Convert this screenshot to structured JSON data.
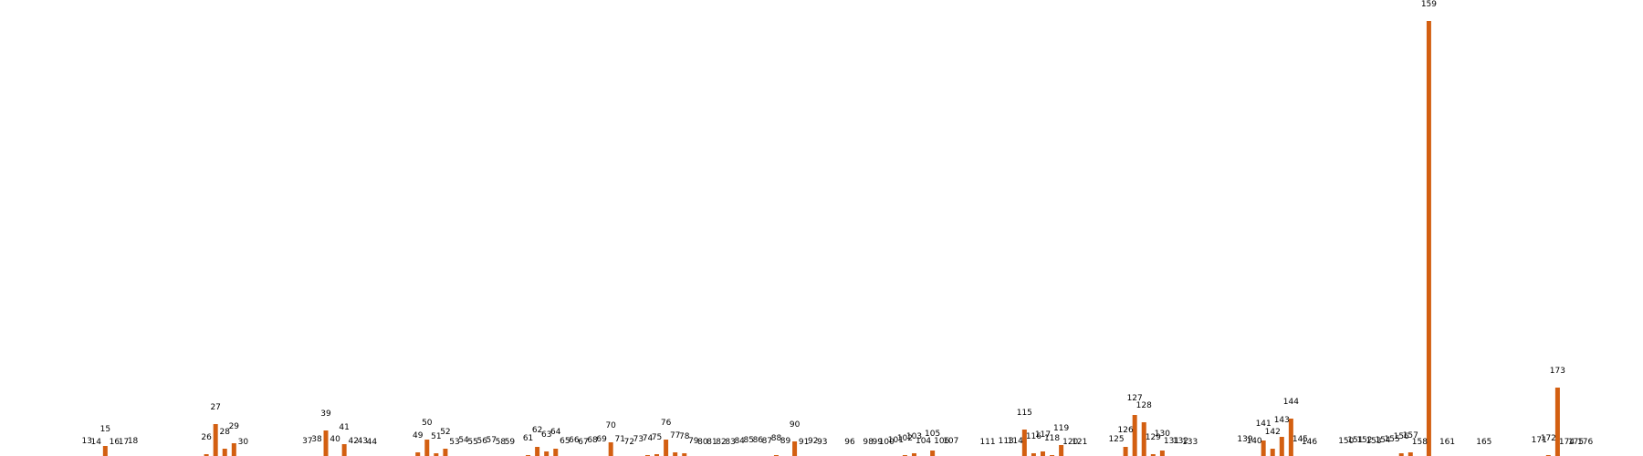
{
  "chart_data": {
    "type": "bar",
    "bar_color": "#d35f11",
    "background": "#ffffff",
    "grid": false,
    "axes_visible": false,
    "points": [
      {
        "label": "13",
        "value": 1
      },
      {
        "label": "14",
        "value": 0
      },
      {
        "label": "15",
        "value": 14
      },
      {
        "label": "16",
        "value": 0
      },
      {
        "label": "17",
        "value": 0
      },
      {
        "label": "18",
        "value": 1
      },
      {
        "label": "26",
        "value": 5
      },
      {
        "label": "27",
        "value": 38
      },
      {
        "label": "28",
        "value": 11
      },
      {
        "label": "29",
        "value": 17
      },
      {
        "label": "30",
        "value": 0
      },
      {
        "label": "37",
        "value": 1
      },
      {
        "label": "38",
        "value": 3
      },
      {
        "label": "39",
        "value": 31
      },
      {
        "label": "40",
        "value": 3
      },
      {
        "label": "41",
        "value": 16
      },
      {
        "label": "42",
        "value": 1
      },
      {
        "label": "43",
        "value": 1
      },
      {
        "label": "44",
        "value": 0
      },
      {
        "label": "49",
        "value": 7
      },
      {
        "label": "50",
        "value": 21
      },
      {
        "label": "51",
        "value": 6
      },
      {
        "label": "52",
        "value": 11
      },
      {
        "label": "53",
        "value": 0
      },
      {
        "label": "54",
        "value": 2
      },
      {
        "label": "55",
        "value": 0
      },
      {
        "label": "56",
        "value": 1
      },
      {
        "label": "57",
        "value": 2
      },
      {
        "label": "58",
        "value": 0
      },
      {
        "label": "59",
        "value": 0
      },
      {
        "label": "61",
        "value": 4
      },
      {
        "label": "62",
        "value": 13
      },
      {
        "label": "63",
        "value": 8
      },
      {
        "label": "64",
        "value": 11
      },
      {
        "label": "65",
        "value": 1
      },
      {
        "label": "66",
        "value": 2
      },
      {
        "label": "67",
        "value": 0
      },
      {
        "label": "68",
        "value": 2
      },
      {
        "label": "69",
        "value": 3
      },
      {
        "label": "70",
        "value": 18
      },
      {
        "label": "71",
        "value": 3
      },
      {
        "label": "72",
        "value": 0
      },
      {
        "label": "73",
        "value": 3
      },
      {
        "label": "74",
        "value": 4
      },
      {
        "label": "75",
        "value": 5
      },
      {
        "label": "76",
        "value": 21
      },
      {
        "label": "77",
        "value": 7
      },
      {
        "label": "78",
        "value": 6
      },
      {
        "label": "79",
        "value": 1
      },
      {
        "label": "80",
        "value": 0
      },
      {
        "label": "81",
        "value": 0
      },
      {
        "label": "82",
        "value": 0
      },
      {
        "label": "83",
        "value": 0
      },
      {
        "label": "84",
        "value": 1
      },
      {
        "label": "85",
        "value": 2
      },
      {
        "label": "86",
        "value": 2
      },
      {
        "label": "87",
        "value": 1
      },
      {
        "label": "88",
        "value": 4
      },
      {
        "label": "89",
        "value": 1
      },
      {
        "label": "90",
        "value": 19
      },
      {
        "label": "91",
        "value": 0
      },
      {
        "label": "92",
        "value": 1
      },
      {
        "label": "93",
        "value": 0
      },
      {
        "label": "96",
        "value": 0
      },
      {
        "label": "98",
        "value": 0
      },
      {
        "label": "99",
        "value": 0
      },
      {
        "label": "100",
        "value": 0
      },
      {
        "label": "101",
        "value": 2
      },
      {
        "label": "102",
        "value": 4
      },
      {
        "label": "103",
        "value": 6
      },
      {
        "label": "104",
        "value": 1
      },
      {
        "label": "105",
        "value": 9
      },
      {
        "label": "106",
        "value": 1
      },
      {
        "label": "107",
        "value": 1
      },
      {
        "label": "111",
        "value": 0
      },
      {
        "label": "113",
        "value": 1
      },
      {
        "label": "114",
        "value": 1
      },
      {
        "label": "115",
        "value": 32
      },
      {
        "label": "116",
        "value": 6
      },
      {
        "label": "117",
        "value": 8
      },
      {
        "label": "118",
        "value": 4
      },
      {
        "label": "119",
        "value": 15
      },
      {
        "label": "120",
        "value": 0
      },
      {
        "label": "121",
        "value": 0
      },
      {
        "label": "125",
        "value": 3
      },
      {
        "label": "126",
        "value": 13
      },
      {
        "label": "127",
        "value": 48
      },
      {
        "label": "128",
        "value": 40
      },
      {
        "label": "129",
        "value": 5
      },
      {
        "label": "130",
        "value": 9
      },
      {
        "label": "131",
        "value": 1
      },
      {
        "label": "132",
        "value": 1
      },
      {
        "label": "133",
        "value": 0
      },
      {
        "label": "139",
        "value": 3
      },
      {
        "label": "140",
        "value": 1
      },
      {
        "label": "141",
        "value": 20
      },
      {
        "label": "142",
        "value": 11
      },
      {
        "label": "143",
        "value": 24
      },
      {
        "label": "144",
        "value": 44
      },
      {
        "label": "145",
        "value": 3
      },
      {
        "label": "146",
        "value": 0
      },
      {
        "label": "150",
        "value": 1
      },
      {
        "label": "151",
        "value": 2
      },
      {
        "label": "152",
        "value": 2
      },
      {
        "label": "153",
        "value": 1
      },
      {
        "label": "154",
        "value": 2
      },
      {
        "label": "155",
        "value": 3
      },
      {
        "label": "156",
        "value": 6
      },
      {
        "label": "157",
        "value": 7
      },
      {
        "label": "158",
        "value": 0
      },
      {
        "label": "159",
        "value": 480
      },
      {
        "label": "161",
        "value": 0
      },
      {
        "label": "165",
        "value": 0
      },
      {
        "label": "171",
        "value": 2
      },
      {
        "label": "172",
        "value": 4
      },
      {
        "label": "173",
        "value": 78
      },
      {
        "label": "174",
        "value": 0
      },
      {
        "label": "175",
        "value": 0
      },
      {
        "label": "176",
        "value": 0
      }
    ]
  }
}
